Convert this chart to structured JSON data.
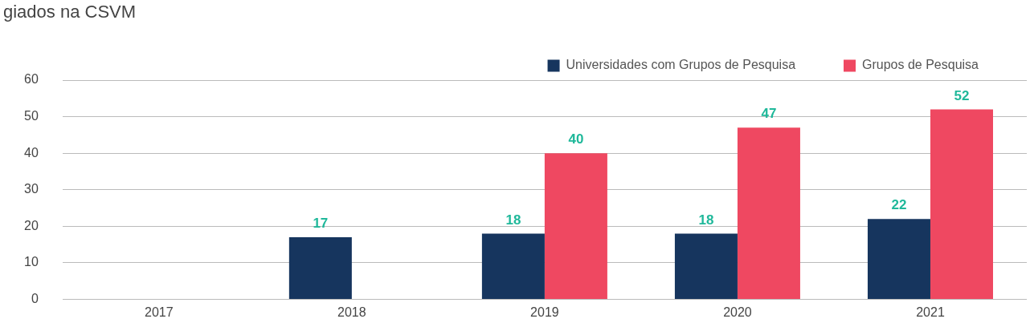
{
  "chart_data": {
    "type": "bar",
    "title": "giados na CSVM",
    "categories": [
      "2017",
      "2018",
      "2019",
      "2020",
      "2021"
    ],
    "series": [
      {
        "name": "Universidades com Grupos de Pesquisa",
        "color": "#16355e",
        "values": [
          null,
          17,
          18,
          18,
          22
        ]
      },
      {
        "name": "Grupos de Pesquisa",
        "color": "#ef4861",
        "values": [
          null,
          null,
          40,
          47,
          52
        ]
      }
    ],
    "ylim": [
      0,
      60
    ],
    "yticks": [
      0,
      10,
      20,
      30,
      40,
      50,
      60
    ],
    "grid": "y",
    "legend": "top right",
    "data_labels": true
  }
}
